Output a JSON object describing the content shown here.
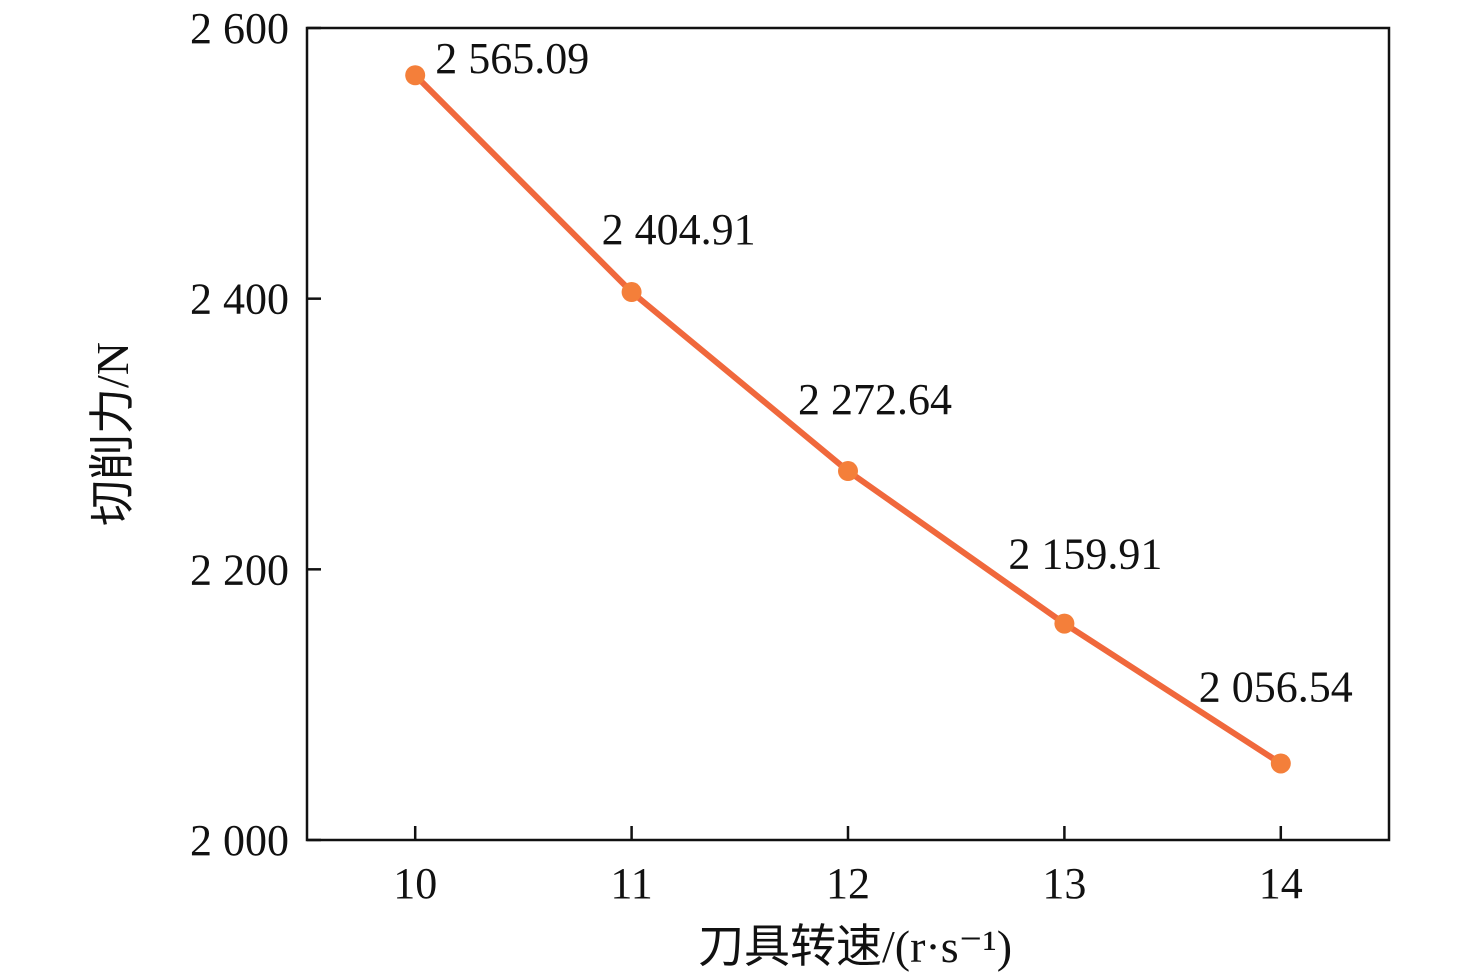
{
  "chart_data": {
    "type": "line",
    "x": [
      10,
      11,
      12,
      13,
      14
    ],
    "series": [
      {
        "values": [
          2565.09,
          2404.91,
          2272.64,
          2159.91,
          2056.54
        ],
        "data_labels": [
          "2 565.09",
          "2 404.91",
          "2 272.64",
          "2 159.91",
          "2 056.54"
        ],
        "color": "#f0683c",
        "marker_color": "#f47f3a"
      }
    ],
    "xlabel": "刀具转速/(r·s⁻¹)",
    "ylabel": "切削力/N",
    "xlim": [
      9.5,
      14.5
    ],
    "ylim": [
      2000,
      2600
    ],
    "x_ticks": [
      10,
      11,
      12,
      13,
      14
    ],
    "x_tick_labels": [
      "10",
      "11",
      "12",
      "13",
      "14"
    ],
    "y_ticks": [
      2000,
      2200,
      2400,
      2600
    ],
    "y_tick_labels": [
      "2 000",
      "2 200",
      "2 400",
      "2 600"
    ],
    "grid": false,
    "legend": "none"
  }
}
